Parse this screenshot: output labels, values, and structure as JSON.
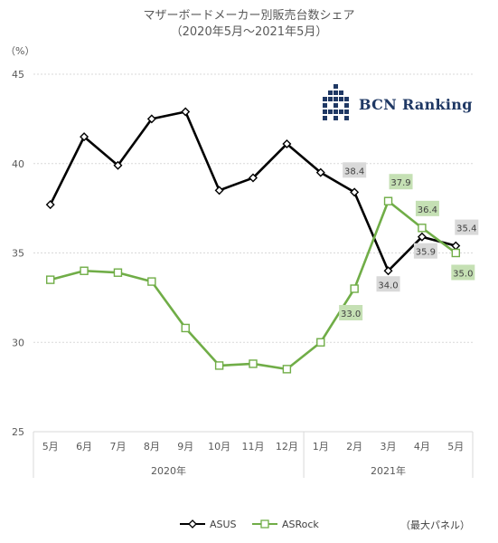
{
  "chart_data": {
    "type": "line",
    "title": "マザーボードメーカー別販売台数シェア",
    "subtitle": "（2020年5月～2021年5月）",
    "ylabel": "（%）",
    "ylim": [
      25,
      45
    ],
    "yticks": [
      25,
      30,
      35,
      40,
      45
    ],
    "categories": [
      "5月",
      "6月",
      "7月",
      "8月",
      "9月",
      "10月",
      "11月",
      "12月",
      "1月",
      "2月",
      "3月",
      "4月",
      "5月"
    ],
    "year_groups": [
      {
        "label": "2020年",
        "span": 8
      },
      {
        "label": "2021年",
        "span": 5
      }
    ],
    "grid": true,
    "legend_position": "bottom",
    "series": [
      {
        "name": "ASUS",
        "color": "#000000",
        "marker": "diamond",
        "values": [
          37.7,
          41.5,
          39.9,
          42.5,
          42.9,
          38.5,
          39.2,
          41.1,
          39.5,
          38.4,
          34.0,
          35.9,
          35.4
        ],
        "labeled_indices": [
          9,
          10,
          11,
          12
        ]
      },
      {
        "name": "ASRock",
        "color": "#70ad47",
        "marker": "square",
        "values": [
          33.5,
          34.0,
          33.9,
          33.4,
          30.8,
          28.7,
          28.8,
          28.5,
          30.0,
          33.0,
          37.9,
          36.4,
          35.0
        ],
        "labeled_indices": [
          9,
          10,
          11,
          12
        ]
      }
    ],
    "data_labels": [
      {
        "series": 0,
        "index": 9,
        "text": "38.4",
        "bg": "#d9d9d9"
      },
      {
        "series": 0,
        "index": 10,
        "text": "34.0",
        "bg": "#d9d9d9"
      },
      {
        "series": 0,
        "index": 11,
        "text": "35.9",
        "bg": "#d9d9d9"
      },
      {
        "series": 0,
        "index": 12,
        "text": "35.4",
        "bg": "#d9d9d9"
      },
      {
        "series": 1,
        "index": 9,
        "text": "33.0",
        "bg": "#c5e0b4"
      },
      {
        "series": 1,
        "index": 10,
        "text": "37.9",
        "bg": "#c5e0b4"
      },
      {
        "series": 1,
        "index": 11,
        "text": "36.4",
        "bg": "#c5e0b4"
      },
      {
        "series": 1,
        "index": 12,
        "text": "35.0",
        "bg": "#c5e0b4"
      }
    ]
  },
  "legend": {
    "asus": "ASUS",
    "asrock": "ASRock"
  },
  "note": "（最大パネル）",
  "logo": {
    "text": "BCN Ranking",
    "color": "#1f3864"
  }
}
